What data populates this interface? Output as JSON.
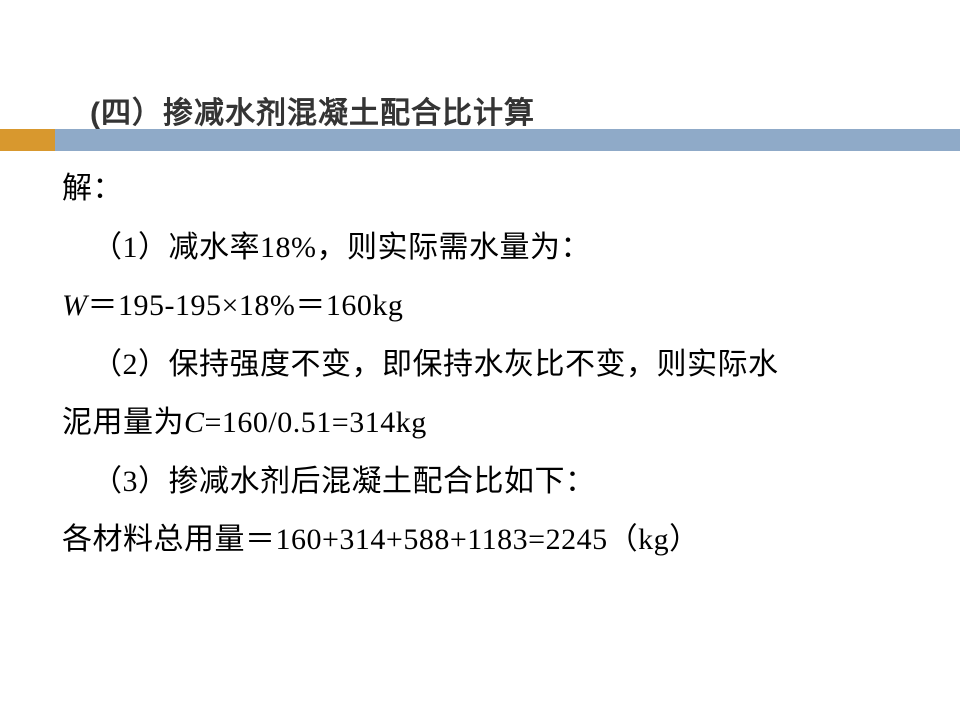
{
  "title": "(四）掺减水剂混凝土配合比计算",
  "colors": {
    "bar_bg": "#8faac8",
    "bar_accent": "#d8982e",
    "title_text": "#343434",
    "body_text": "#000000",
    "background": "#ffffff"
  },
  "typography": {
    "title_fontsize": 30,
    "title_weight": "bold",
    "body_fontsize": 30,
    "line_height": 1.95
  },
  "lines": {
    "l0": "解：",
    "l1_pre": "（",
    "l1_num": "1",
    "l1_post": "）减水率",
    "l1_val": "18%",
    "l1_tail": "，则实际需水量为：",
    "l2_var": "W",
    "l2_eq": "＝",
    "l2_expr": "195-195×18%",
    "l2_eq2": "＝",
    "l2_res": "160kg",
    "l3_pre": "（",
    "l3_num": "2",
    "l3_post": "）保持强度不变，即保持水灰比不变，则实际水",
    "l4_a": "泥用量为",
    "l4_var": "C",
    "l4_expr": "=160/0.51=314kg",
    "l5_pre": "（",
    "l5_num": "3",
    "l5_post": "）掺减水剂后混凝土配合比如下：",
    "l6_a": " 各材料总用量＝",
    "l6_expr": "160+314+588+1183=2245",
    "l6_b": "（",
    "l6_unit": "kg",
    "l6_c": "）"
  }
}
